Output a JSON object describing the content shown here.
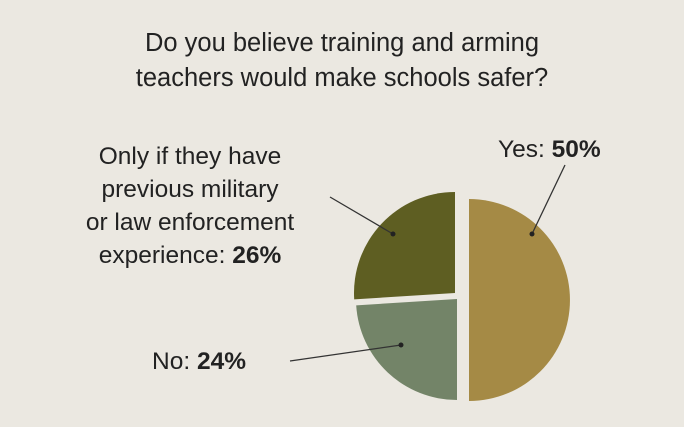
{
  "chart_data": {
    "type": "pie",
    "title_lines": [
      "Do you believe training and arming",
      "teachers would make schools safer?"
    ],
    "slices": [
      {
        "label": "Yes:",
        "value": 50,
        "value_text": "50%",
        "color": "#a58a45"
      },
      {
        "label_lines": [
          "Only if they have",
          "previous military",
          "or law enforcement",
          "experience:"
        ],
        "value": 26,
        "value_text": "26%",
        "color": "#5e5e22"
      },
      {
        "label": "No:",
        "value": 24,
        "value_text": "24%",
        "color": "#738468"
      }
    ]
  }
}
